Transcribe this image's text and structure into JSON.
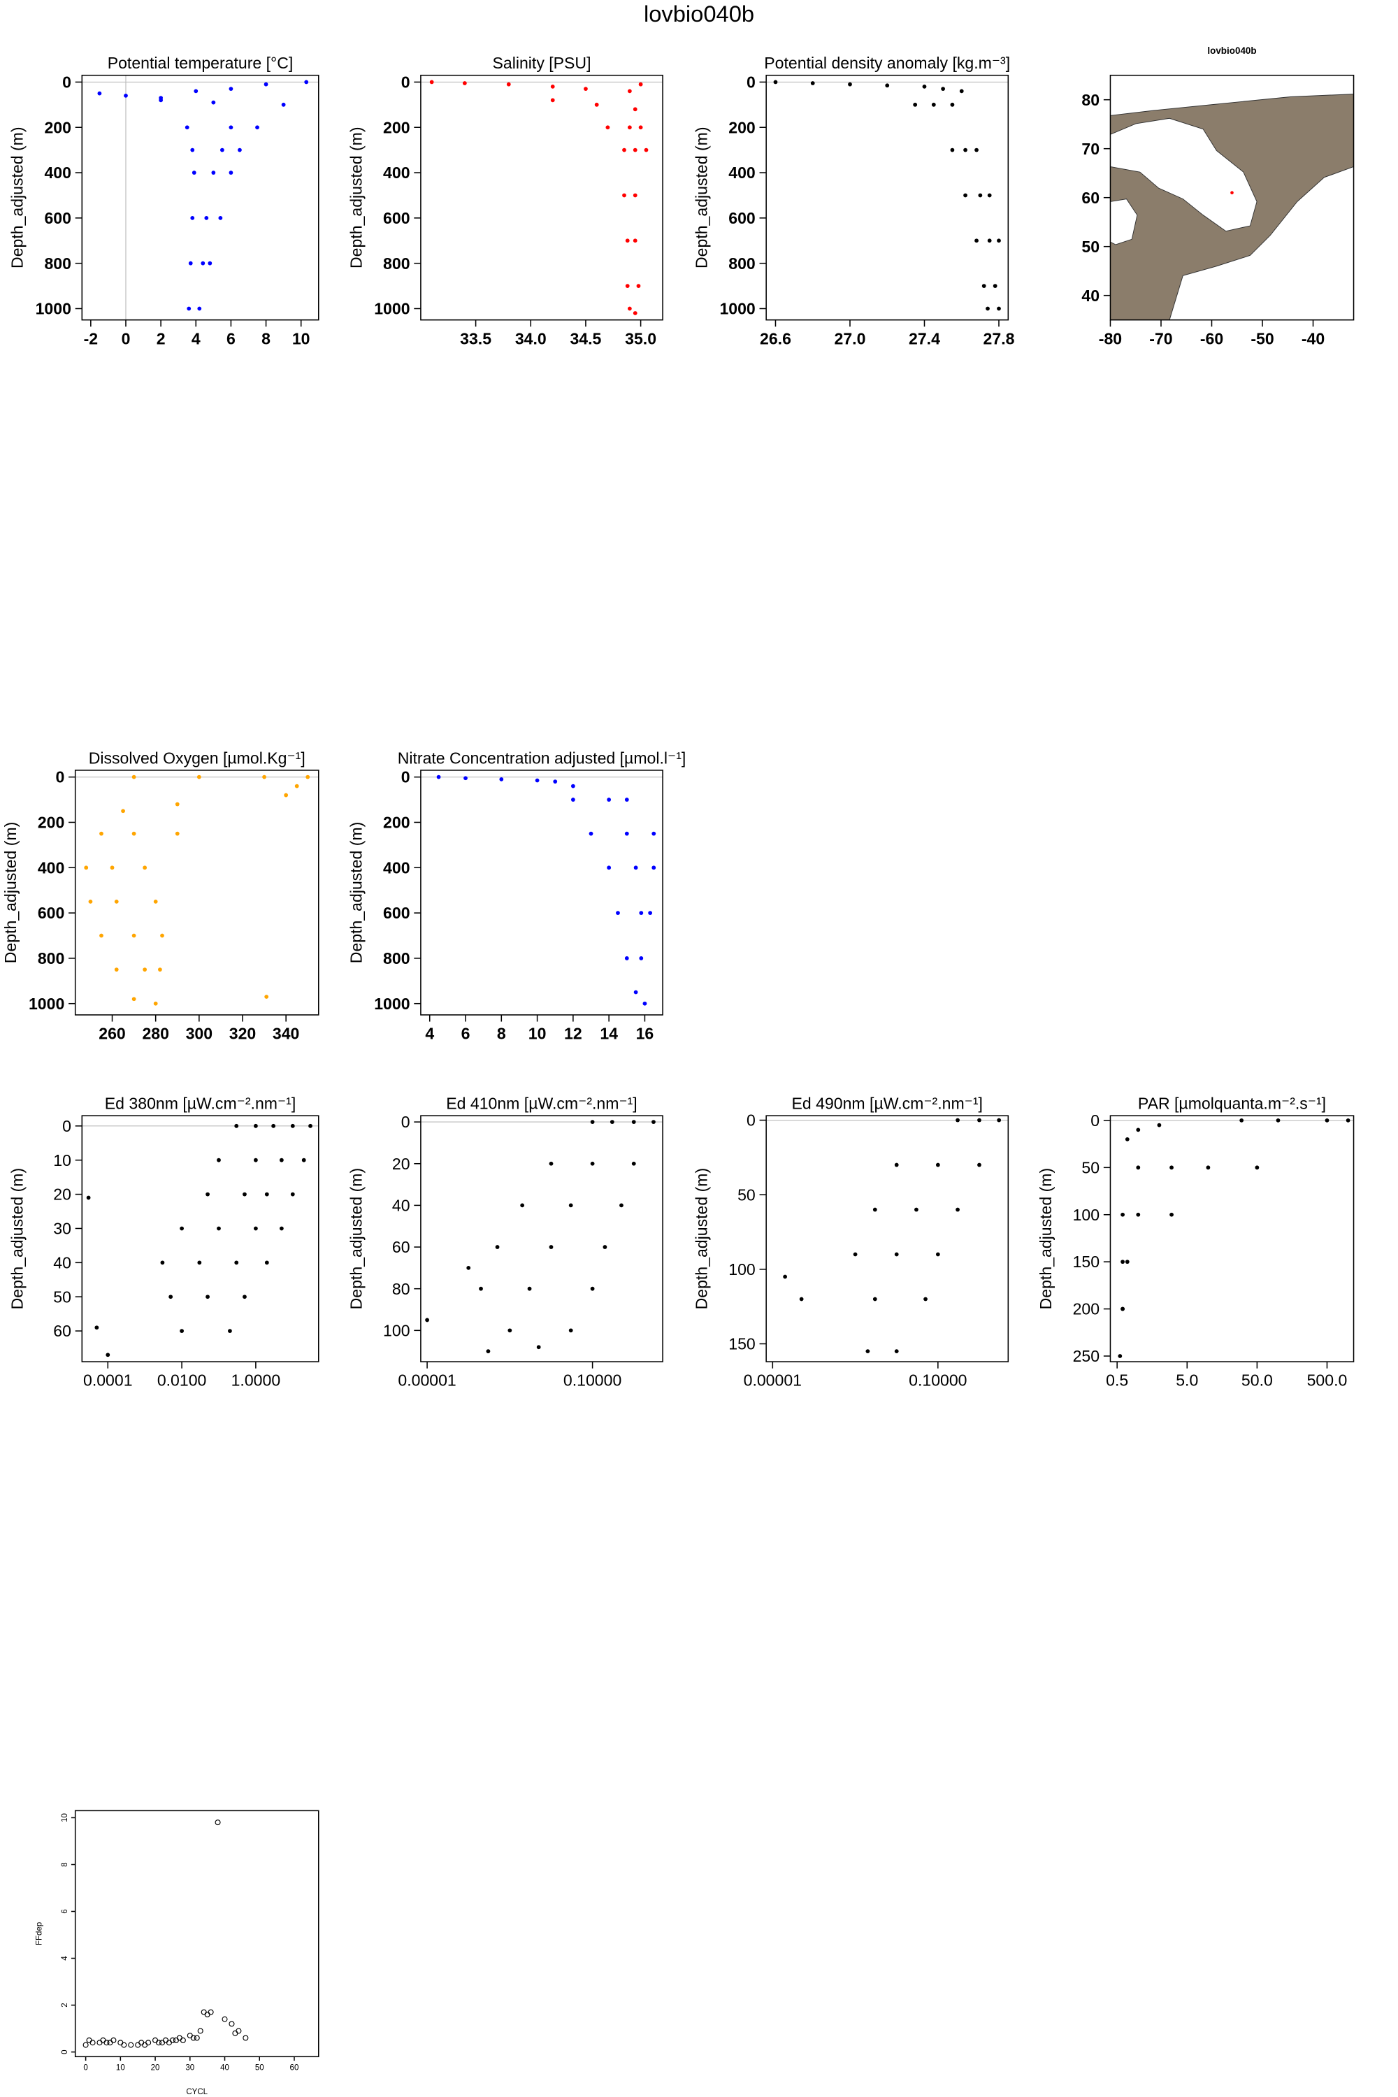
{
  "title": "lovbio040b",
  "chart_data": [
    {
      "type": "scatter",
      "title": "Potential temperature [°C]",
      "ylabel": "Depth_adjusted (m)",
      "color": "#0000ff",
      "zero_line": true,
      "x": [
        -1.5,
        0,
        2,
        4,
        6,
        8,
        10.3,
        2,
        5,
        9,
        3.5,
        6,
        7.5,
        3.8,
        5.5,
        6.5,
        3.9,
        5,
        6,
        3.8,
        4.6,
        5.4,
        3.7,
        4.4,
        4.8,
        3.6,
        4.2
      ],
      "values": [
        50,
        60,
        70,
        40,
        30,
        10,
        0,
        80,
        90,
        100,
        200,
        200,
        200,
        300,
        300,
        300,
        400,
        400,
        400,
        600,
        600,
        600,
        800,
        800,
        800,
        1000,
        1000
      ],
      "xlim": [
        -2.5,
        11
      ],
      "ylim": [
        1050,
        -30
      ],
      "xticks": [
        -2,
        0,
        2,
        4,
        6,
        8,
        10
      ],
      "yticks": [
        0,
        200,
        400,
        600,
        800,
        1000
      ]
    },
    {
      "type": "scatter",
      "title": "Salinity [PSU]",
      "ylabel": "Depth_adjusted (m)",
      "color": "#ff0000",
      "zero_line": true,
      "x": [
        33.1,
        33.4,
        33.8,
        34.2,
        34.5,
        34.9,
        35.0,
        34.2,
        34.6,
        34.95,
        34.7,
        34.9,
        35.0,
        34.85,
        34.95,
        35.05,
        34.85,
        34.95,
        34.88,
        34.95,
        34.88,
        34.98,
        34.9,
        34.95
      ],
      "values": [
        0,
        5,
        10,
        20,
        30,
        40,
        10,
        80,
        100,
        120,
        200,
        200,
        200,
        300,
        300,
        300,
        500,
        500,
        700,
        700,
        900,
        900,
        1000,
        1020
      ],
      "xlim": [
        33.0,
        35.2
      ],
      "ylim": [
        1050,
        -30
      ],
      "xticks": [
        33.5,
        {
          "value": 34.0,
          "label": "34.0"
        },
        34.5,
        {
          "value": 35.0,
          "label": "35.0"
        }
      ],
      "yticks": [
        0,
        200,
        400,
        600,
        800,
        1000
      ]
    },
    {
      "type": "scatter",
      "title": "Potential density anomaly [kg.m⁻³]",
      "ylabel": "Depth_adjusted (m)",
      "color": "#000000",
      "zero_line": true,
      "x": [
        26.6,
        26.8,
        27.0,
        27.2,
        27.4,
        27.5,
        27.6,
        27.35,
        27.45,
        27.55,
        27.55,
        27.62,
        27.68,
        27.62,
        27.7,
        27.75,
        27.68,
        27.75,
        27.8,
        27.72,
        27.78,
        27.74,
        27.8
      ],
      "values": [
        0,
        5,
        10,
        15,
        20,
        30,
        40,
        100,
        100,
        100,
        300,
        300,
        300,
        500,
        500,
        500,
        700,
        700,
        700,
        900,
        900,
        1000,
        1000
      ],
      "xlim": [
        26.55,
        27.85
      ],
      "ylim": [
        1050,
        -30
      ],
      "xticks": [
        26.6,
        {
          "value": 27.0,
          "label": "27.0"
        },
        27.4,
        27.8
      ],
      "yticks": [
        0,
        200,
        400,
        600,
        800,
        1000
      ]
    },
    {
      "type": "map",
      "title": "lovbio040b",
      "color": "#ff0000",
      "x": [
        -56
      ],
      "values": [
        61
      ],
      "xlim": [
        -80,
        -32
      ],
      "ylim": [
        35,
        85
      ],
      "xticks": [
        -80,
        -70,
        -60,
        -50,
        -40
      ],
      "yticks": [
        40,
        50,
        60,
        70,
        80
      ]
    },
    {
      "type": "scatter",
      "title": "Dissolved Oxygen [µmol.Kg⁻¹]",
      "ylabel": "Depth_adjusted (m)",
      "color": "#ffa500",
      "zero_line": true,
      "x": [
        270,
        300,
        330,
        350,
        345,
        340,
        290,
        265,
        255,
        270,
        290,
        248,
        260,
        275,
        250,
        262,
        280,
        255,
        270,
        283,
        262,
        275,
        282,
        270,
        280,
        331
      ],
      "values": [
        0,
        0,
        0,
        0,
        40,
        80,
        120,
        150,
        250,
        250,
        250,
        400,
        400,
        400,
        550,
        550,
        550,
        700,
        700,
        700,
        850,
        850,
        850,
        980,
        1000,
        970
      ],
      "xlim": [
        243,
        355
      ],
      "ylim": [
        1050,
        -30
      ],
      "xticks": [
        260,
        280,
        300,
        320,
        340
      ],
      "yticks": [
        0,
        200,
        400,
        600,
        800,
        1000
      ]
    },
    {
      "type": "scatter",
      "title": "Nitrate Concentration adjusted [µmol.l⁻¹]",
      "ylabel": "Depth_adjusted (m)",
      "color": "#0000ff",
      "zero_line": true,
      "x": [
        4.5,
        6,
        8,
        10,
        11,
        12,
        12,
        14,
        15,
        13,
        15,
        16.5,
        14,
        15.5,
        16.5,
        14.5,
        15.8,
        16.3,
        15,
        15.8,
        15.5,
        16
      ],
      "values": [
        0,
        5,
        10,
        15,
        20,
        40,
        100,
        100,
        100,
        250,
        250,
        250,
        400,
        400,
        400,
        600,
        600,
        600,
        800,
        800,
        950,
        1000
      ],
      "xlim": [
        3.5,
        17
      ],
      "ylim": [
        1050,
        -30
      ],
      "xticks": [
        4,
        6,
        8,
        10,
        12,
        14,
        16
      ],
      "yticks": [
        0,
        200,
        400,
        600,
        800,
        1000
      ]
    },
    {
      "type": "scatter",
      "title": "Ed 380nm [µW.cm⁻².nm⁻¹]",
      "ylabel": "Depth_adjusted (m)",
      "color": "#000000",
      "xlog": true,
      "zero_line": true,
      "x": [
        30,
        10,
        3,
        1,
        0.3,
        20,
        5,
        1,
        0.1,
        10,
        2,
        0.5,
        0.05,
        5,
        1,
        0.1,
        0.01,
        2,
        0.3,
        0.03,
        0.003,
        0.5,
        0.05,
        0.005,
        0.2,
        0.01,
        3e-05,
        0.0001,
        5e-05
      ],
      "values": [
        0,
        0,
        0,
        0,
        0,
        10,
        10,
        10,
        10,
        20,
        20,
        20,
        20,
        30,
        30,
        30,
        30,
        40,
        40,
        40,
        40,
        50,
        50,
        50,
        60,
        60,
        21,
        67,
        59
      ],
      "xlim": [
        2e-05,
        50
      ],
      "ylim": [
        69,
        -3
      ],
      "xticks": [
        {
          "value": 0.0001,
          "label": "0.0001"
        },
        {
          "value": 0.01,
          "label": "0.0100"
        },
        {
          "value": 1,
          "label": "1.0000"
        }
      ],
      "yticks": [
        0,
        10,
        20,
        30,
        40,
        50,
        60
      ]
    },
    {
      "type": "scatter",
      "title": "Ed 410nm [µW.cm⁻².nm⁻¹]",
      "ylabel": "Depth_adjusted (m)",
      "color": "#000000",
      "xlog": true,
      "zero_line": true,
      "x": [
        3,
        1,
        0.3,
        0.1,
        1,
        0.1,
        0.01,
        0.5,
        0.03,
        0.002,
        0.2,
        0.01,
        0.0005,
        0.1,
        0.003,
        0.0002,
        0.03,
        0.001,
        0.005,
        0.0003,
        1e-05,
        0.0001
      ],
      "values": [
        0,
        0,
        0,
        0,
        20,
        20,
        20,
        40,
        40,
        40,
        60,
        60,
        60,
        80,
        80,
        80,
        100,
        100,
        108,
        110,
        95,
        70
      ],
      "xlim": [
        7e-06,
        5
      ],
      "ylim": [
        115,
        -3
      ],
      "xticks": [
        {
          "value": 1e-05,
          "label": "0.00001"
        },
        {
          "value": 0.1,
          "label": "0.10000"
        }
      ],
      "yticks": [
        0,
        20,
        40,
        60,
        80,
        100
      ]
    },
    {
      "type": "scatter",
      "title": "Ed 490nm [µW.cm⁻².nm⁻¹]",
      "ylabel": "Depth_adjusted (m)",
      "color": "#000000",
      "xlog": true,
      "zero_line": true,
      "x": [
        3,
        1,
        0.3,
        1,
        0.1,
        0.01,
        0.3,
        0.03,
        0.003,
        0.1,
        0.01,
        0.001,
        0.05,
        0.003,
        0.01,
        0.002,
        2e-05,
        5e-05
      ],
      "values": [
        0,
        0,
        0,
        30,
        30,
        30,
        60,
        60,
        60,
        90,
        90,
        90,
        120,
        120,
        155,
        155,
        105,
        120
      ],
      "xlim": [
        7e-06,
        5
      ],
      "ylim": [
        162,
        -3
      ],
      "xticks": [
        {
          "value": 1e-05,
          "label": "0.00001"
        },
        {
          "value": 0.1,
          "label": "0.10000"
        }
      ],
      "yticks": [
        0,
        50,
        100,
        150
      ]
    },
    {
      "type": "scatter",
      "title": "PAR [µmolquanta.m⁻².s⁻¹]",
      "ylabel": "Depth_adjusted (m)",
      "color": "#000000",
      "xlog": true,
      "zero_line": true,
      "x": [
        1000,
        500,
        100,
        30,
        50,
        10,
        3,
        1,
        3,
        1,
        0.6,
        0.7,
        0.6,
        0.6,
        0.6,
        0.55,
        0.7,
        1,
        2
      ],
      "values": [
        0,
        0,
        0,
        0,
        50,
        50,
        50,
        50,
        100,
        100,
        100,
        150,
        150,
        200,
        200,
        250,
        20,
        10,
        5
      ],
      "xlim": [
        0.4,
        1200
      ],
      "ylim": [
        256,
        -5
      ],
      "xticks": [
        {
          "value": 0.5,
          "label": "0.5"
        },
        {
          "value": 5,
          "label": "5.0"
        },
        {
          "value": 50,
          "label": "50.0"
        },
        {
          "value": 500,
          "label": "500.0"
        }
      ],
      "yticks": [
        0,
        50,
        100,
        150,
        200,
        250
      ]
    },
    {
      "type": "scatter",
      "xlabel": "CYCL",
      "ylabel": "FFdep",
      "color": "#000000",
      "marker": "open",
      "x": [
        0,
        1,
        2,
        4,
        5,
        6,
        7,
        8,
        10,
        11,
        13,
        15,
        16,
        17,
        18,
        20,
        21,
        22,
        23,
        24,
        25,
        26,
        27,
        28,
        30,
        31,
        32,
        33,
        34,
        35,
        36,
        38,
        40,
        42,
        43,
        44,
        46
      ],
      "values": [
        0.3,
        0.5,
        0.4,
        0.4,
        0.5,
        0.4,
        0.4,
        0.5,
        0.4,
        0.3,
        0.3,
        0.3,
        0.4,
        0.3,
        0.4,
        0.5,
        0.4,
        0.4,
        0.5,
        0.4,
        0.5,
        0.5,
        0.6,
        0.5,
        0.7,
        0.6,
        0.6,
        0.9,
        1.7,
        1.6,
        1.7,
        9.8,
        1.4,
        1.2,
        0.8,
        0.9,
        0.6
      ],
      "xlim": [
        -3,
        67
      ],
      "ylim": [
        -0.2,
        10.3
      ],
      "xticks": [
        0,
        10,
        20,
        30,
        40,
        50,
        60
      ],
      "yticks": [
        0,
        2,
        4,
        6,
        8,
        10
      ]
    }
  ]
}
